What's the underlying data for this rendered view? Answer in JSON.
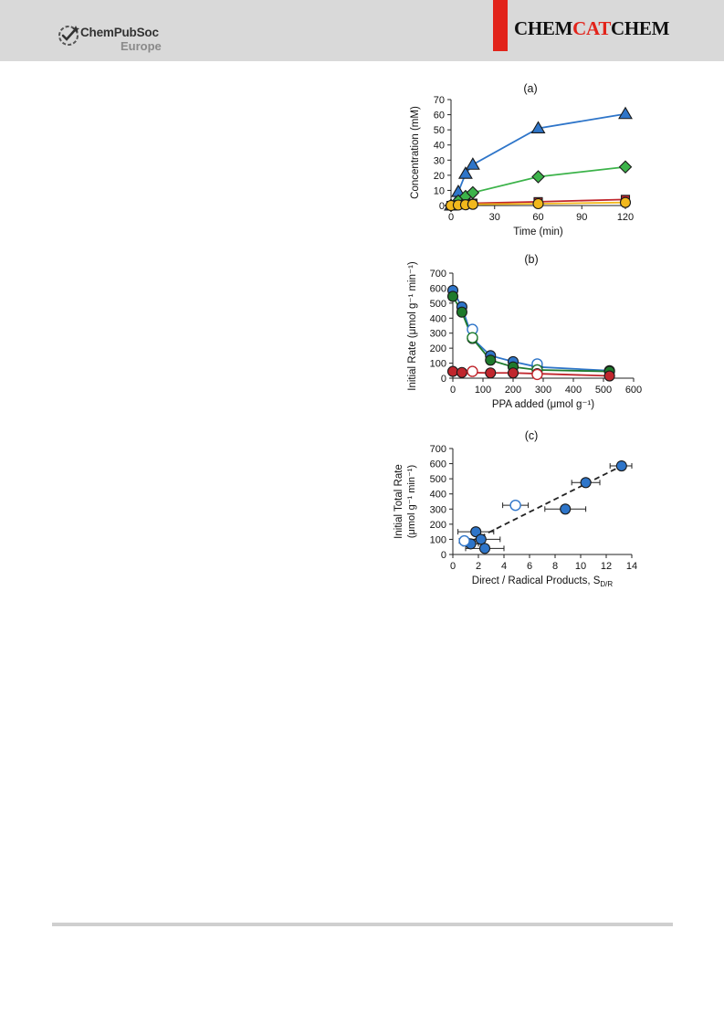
{
  "header": {
    "publisher_name": "ChemPubSoc",
    "publisher_sub": "Europe",
    "journal_part1": "CHEM",
    "journal_part2": "CAT",
    "journal_part3": "CHEM",
    "accent_color": "#e2231a",
    "background_color": "#d9d9d9"
  },
  "chart_data": [
    {
      "panel_label": "(a)",
      "type": "line",
      "xlabel": "Time (min)",
      "ylabel": "Concentration (mM)",
      "xlim": [
        0,
        120
      ],
      "ylim": [
        0,
        70
      ],
      "xticks": [
        0,
        30,
        60,
        90,
        120
      ],
      "yticks": [
        0,
        10,
        20,
        30,
        40,
        50,
        60,
        70
      ],
      "grid": false,
      "series": [
        {
          "marker": "triangle",
          "color": "#2e75c9",
          "filled": true,
          "x": [
            0,
            5,
            10,
            15,
            60,
            120
          ],
          "y": [
            0,
            9,
            21,
            27,
            51,
            60.5
          ]
        },
        {
          "marker": "diamond",
          "color": "#3cb34a",
          "filled": true,
          "x": [
            0,
            5,
            10,
            15,
            60,
            120
          ],
          "y": [
            0,
            3,
            6,
            8.5,
            19,
            25.5
          ]
        },
        {
          "marker": "square",
          "color": "#c0262d",
          "filled": true,
          "x": [
            0,
            5,
            10,
            15,
            60,
            120
          ],
          "y": [
            0,
            0.5,
            1,
            1.5,
            2.5,
            4
          ]
        },
        {
          "marker": "circle",
          "color": "#f2b81c",
          "filled": true,
          "x": [
            0,
            5,
            10,
            15,
            60,
            120
          ],
          "y": [
            0,
            0.3,
            0.5,
            0.8,
            1.2,
            2
          ]
        }
      ]
    },
    {
      "panel_label": "(b)",
      "type": "line",
      "xlabel": "PPA added (μmol g⁻¹)",
      "ylabel": "Initial Rate (μmol g⁻¹ min⁻¹)",
      "xlim": [
        0,
        600
      ],
      "ylim": [
        0,
        700
      ],
      "xticks": [
        0,
        100,
        200,
        300,
        400,
        500,
        600
      ],
      "yticks": [
        0,
        100,
        200,
        300,
        400,
        500,
        600,
        700
      ],
      "grid": false,
      "series": [
        {
          "marker": "circle",
          "color": "#2e75c9",
          "filled": true,
          "x": [
            0,
            30,
            65,
            125,
            200,
            280,
            520
          ],
          "y": [
            585,
            475,
            265,
            150,
            110,
            75,
            50
          ]
        },
        {
          "marker": "circle",
          "color": "#2e75c9",
          "filled": false,
          "x": [
            65,
            280
          ],
          "y": [
            325,
            95
          ]
        },
        {
          "marker": "circle",
          "color": "#1e7a2c",
          "filled": true,
          "x": [
            0,
            30,
            65,
            125,
            200,
            280,
            520
          ],
          "y": [
            545,
            440,
            265,
            120,
            75,
            55,
            45
          ]
        },
        {
          "marker": "circle",
          "color": "#1e7a2c",
          "filled": false,
          "x": [
            65,
            280
          ],
          "y": [
            270,
            55
          ]
        },
        {
          "marker": "circle",
          "color": "#c0262d",
          "filled": true,
          "x": [
            0,
            30,
            125,
            200,
            280,
            520
          ],
          "y": [
            45,
            38,
            35,
            35,
            30,
            15
          ]
        },
        {
          "marker": "circle",
          "color": "#c0262d",
          "filled": false,
          "x": [
            65,
            280
          ],
          "y": [
            45,
            25
          ]
        }
      ]
    },
    {
      "panel_label": "(c)",
      "type": "scatter",
      "xlabel": "Direct / Radical Products, S",
      "xlabel_subscript": "D/R",
      "ylabel_line1": "Initial Total Rate",
      "ylabel_line2": "(μmol g⁻¹ min⁻¹)",
      "xlim": [
        0,
        14
      ],
      "ylim": [
        0,
        700
      ],
      "xticks": [
        0,
        2,
        4,
        6,
        8,
        10,
        12,
        14
      ],
      "yticks": [
        0,
        100,
        200,
        300,
        400,
        500,
        600,
        700
      ],
      "grid": false,
      "trendline": {
        "style": "dashed",
        "x": [
          1.5,
          13.2
        ],
        "y": [
          90,
          585
        ]
      },
      "series": [
        {
          "marker": "circle",
          "color": "#2e75c9",
          "filled": true,
          "x": [
            13.2,
            10.4,
            8.8,
            1.8,
            2.2,
            1.4,
            2.5
          ],
          "y": [
            585,
            475,
            300,
            150,
            100,
            70,
            40
          ],
          "xerr": [
            0.9,
            1.1,
            1.6,
            1.4,
            1.5,
            0.6,
            1.5
          ]
        },
        {
          "marker": "circle",
          "color": "#2e75c9",
          "filled": false,
          "x": [
            4.9,
            0.9
          ],
          "y": [
            325,
            90
          ],
          "xerr": [
            1.0,
            0.4
          ]
        }
      ]
    }
  ]
}
